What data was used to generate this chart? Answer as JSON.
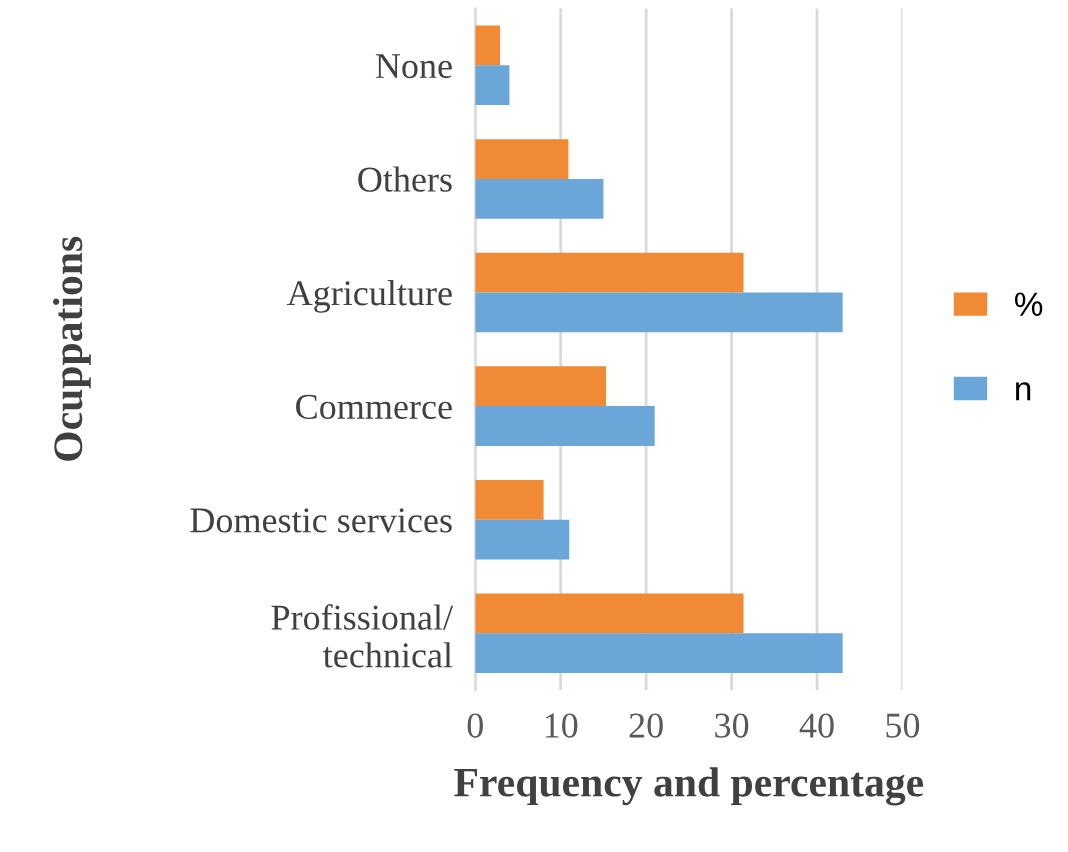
{
  "chart_data": {
    "type": "bar",
    "orientation": "horizontal",
    "xlabel": "Frequency and percentage",
    "ylabel": "Ocuppations",
    "categories": [
      "None",
      "Others",
      "Agriculture",
      "Commerce",
      "Domestic services",
      "Profissional/\ntechnical"
    ],
    "series": [
      {
        "name": "%",
        "color": "#f08a35",
        "values": [
          2.9,
          10.9,
          31.4,
          15.3,
          8.0,
          31.4
        ]
      },
      {
        "name": "n",
        "color": "#6aa6d8",
        "values": [
          4,
          15,
          43,
          21,
          11,
          43
        ]
      }
    ],
    "xlim": [
      0,
      50
    ],
    "xticks": [
      0,
      10,
      20,
      30,
      40,
      50
    ],
    "grid": "x",
    "legend": "right"
  }
}
